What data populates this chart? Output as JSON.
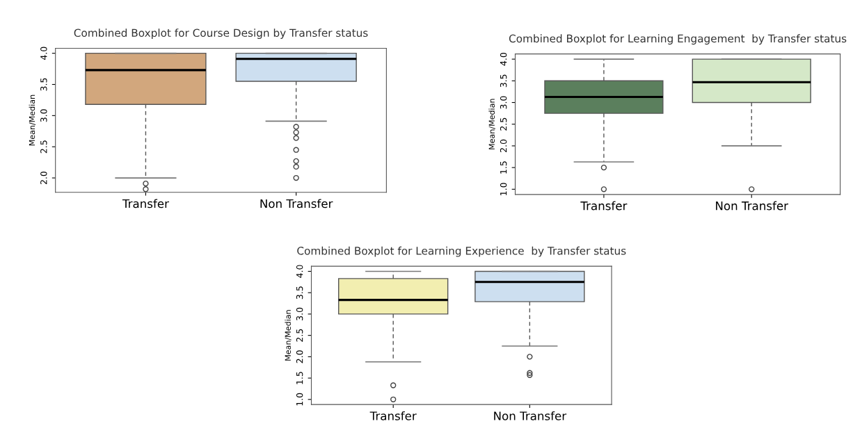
{
  "chart_data": [
    {
      "type": "box",
      "title": "Combined Boxplot for Course Design by Transfer status",
      "ylabel": "Mean/Median",
      "categories": [
        "Transfer",
        "Non Transfer"
      ],
      "colors": [
        "#d2a77d",
        "#cddff0"
      ],
      "ylim": [
        1.77,
        4.08
      ],
      "yticks": [
        {
          "value": 2.0,
          "label": "2.0"
        },
        {
          "value": 2.5,
          "label": "2.5"
        },
        {
          "value": 3.0,
          "label": "3.0"
        },
        {
          "value": 3.5,
          "label": "3.5"
        },
        {
          "value": 4.0,
          "label": "4.0"
        }
      ],
      "boxes": [
        {
          "low": 2.0,
          "q1": 3.18,
          "median": 3.73,
          "q3": 4.0,
          "high": 4.0,
          "outliers": [
            1.91,
            1.82
          ]
        },
        {
          "low": 2.91,
          "q1": 3.55,
          "median": 3.91,
          "q3": 4.0,
          "high": 4.0,
          "outliers": [
            2.82,
            2.73,
            2.64,
            2.45,
            2.27,
            2.18,
            2.0
          ]
        }
      ]
    },
    {
      "type": "box",
      "title": "Combined Boxplot for Learning Engagement  by Transfer status",
      "ylabel": "Mean/Median",
      "categories": [
        "Transfer",
        "Non Transfer"
      ],
      "colors": [
        "#5b7f5d",
        "#d5e8c8"
      ],
      "ylim": [
        0.88,
        4.12
      ],
      "yticks": [
        {
          "value": 1.0,
          "label": "1.0"
        },
        1.5,
        {
          "value": 2.0,
          "label": "2.0"
        },
        2.5,
        {
          "value": 3.0,
          "label": "3.0"
        },
        3.5,
        {
          "value": 4.0,
          "label": "4.0"
        }
      ],
      "boxes": [
        {
          "low": 1.63,
          "q1": 2.75,
          "median": 3.13,
          "q3": 3.5,
          "high": 4.0,
          "outliers": [
            1.5,
            1.0
          ]
        },
        {
          "low": 2.0,
          "q1": 3.0,
          "median": 3.47,
          "q3": 4.0,
          "high": 4.0,
          "outliers": [
            1.0
          ]
        }
      ]
    },
    {
      "type": "box",
      "title": "Combined Boxplot for Learning Experience  by Transfer status",
      "ylabel": "Mean/Median",
      "categories": [
        "Transfer",
        "Non Transfer"
      ],
      "colors": [
        "#f2eeb0",
        "#cddff0"
      ],
      "ylim": [
        0.88,
        4.12
      ],
      "yticks": [
        {
          "value": 1.0,
          "label": "1.0"
        },
        1.5,
        {
          "value": 2.0,
          "label": "2.0"
        },
        2.5,
        {
          "value": 3.0,
          "label": "3.0"
        },
        3.5,
        {
          "value": 4.0,
          "label": "4.0"
        }
      ],
      "boxes": [
        {
          "low": 1.88,
          "q1": 3.0,
          "median": 3.33,
          "q3": 3.83,
          "high": 4.0,
          "outliers": [
            1.33,
            1.0
          ]
        },
        {
          "low": 2.25,
          "q1": 3.29,
          "median": 3.75,
          "q3": 4.0,
          "high": 4.0,
          "outliers": [
            2.0,
            1.62,
            1.57
          ]
        }
      ]
    }
  ]
}
